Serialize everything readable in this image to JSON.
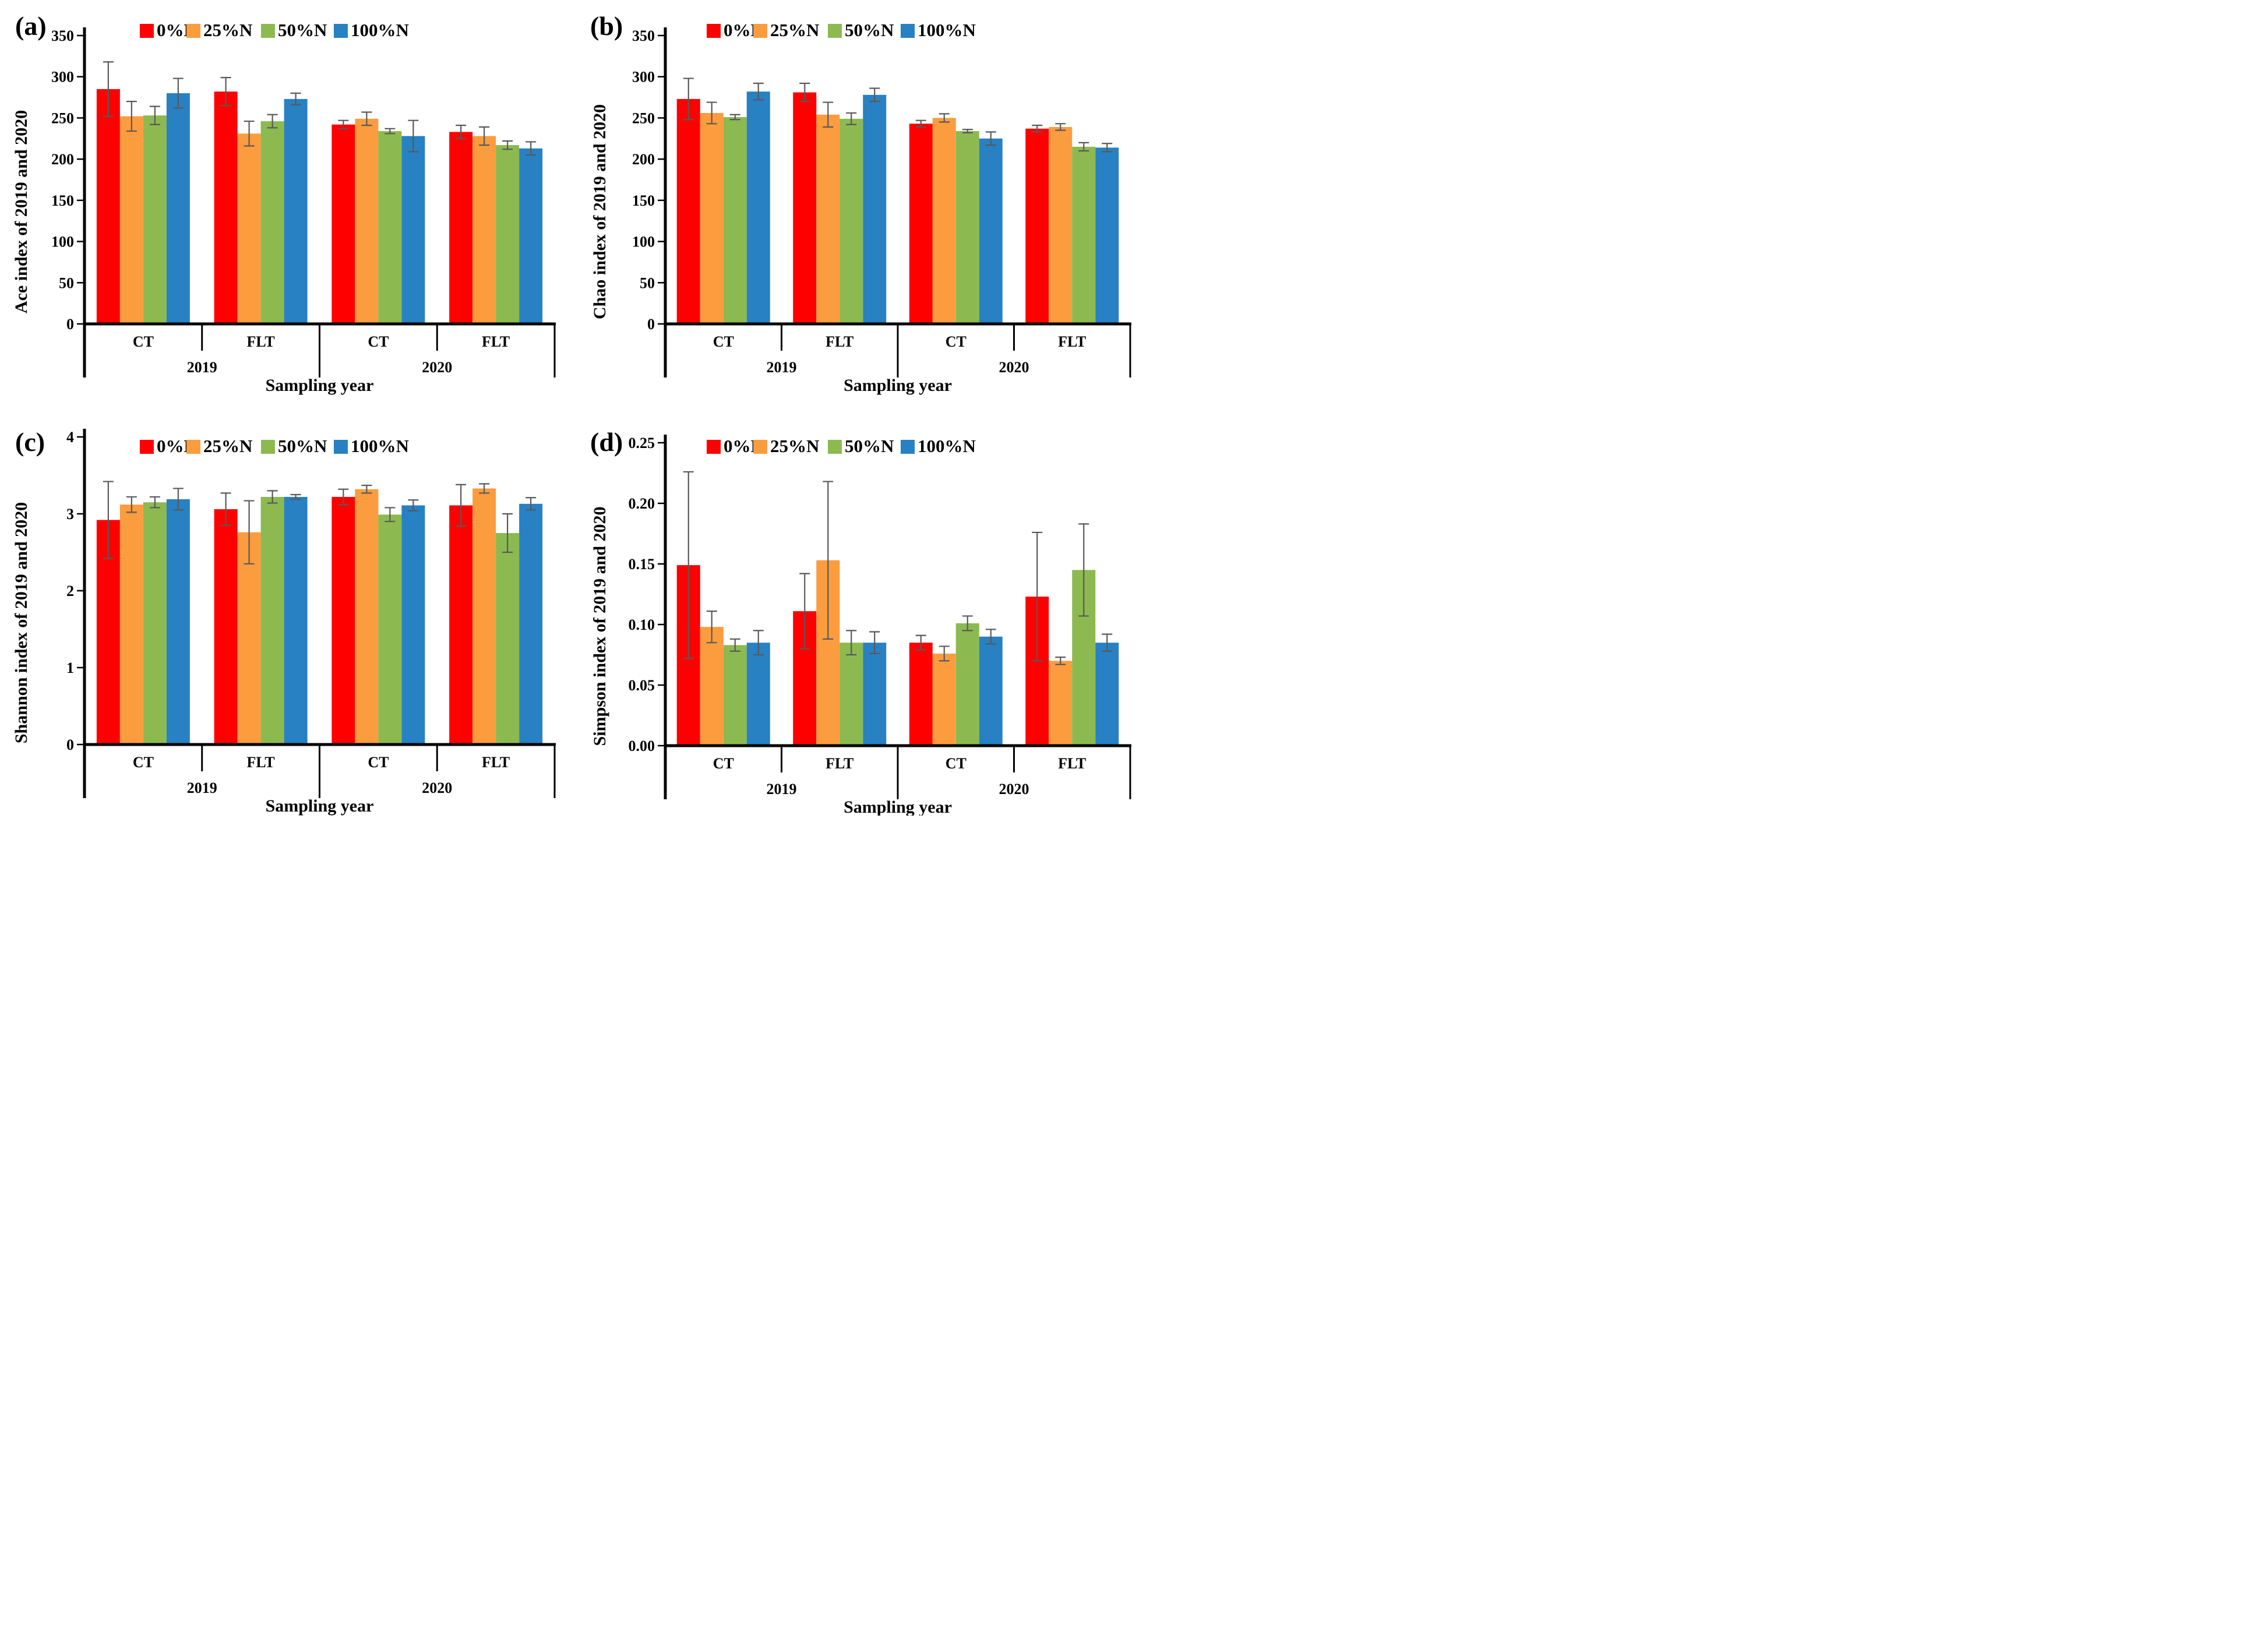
{
  "figure": {
    "xlabel": "Sampling year",
    "years": [
      "2019",
      "2020"
    ],
    "tillages": [
      "CT",
      "FLT"
    ],
    "legend": [
      "0%N",
      "25%N",
      "50%N",
      "100%N"
    ],
    "series_colors": [
      "#FF0000",
      "#FB9C3F",
      "#8CBA50",
      "#2781C3"
    ],
    "error_bar_color": "#595959",
    "axis_color": "#000000",
    "background": "#FFFFFF"
  },
  "chart_data": [
    {
      "type": "bar",
      "panel_letter": "(a)",
      "ylabel": "Ace index of 2019 and 2020",
      "xlabel": "Sampling year",
      "ylim": [
        0,
        350
      ],
      "yticks": [
        0,
        50,
        100,
        150,
        200,
        250,
        300,
        350
      ],
      "ytick_labels": [
        "0",
        "50",
        "100",
        "150",
        "200",
        "250",
        "300",
        "350"
      ],
      "grid": false,
      "legend_position": "top",
      "categories": [
        {
          "tillage": "CT",
          "year": "2019"
        },
        {
          "tillage": "FLT",
          "year": "2019"
        },
        {
          "tillage": "CT",
          "year": "2020"
        },
        {
          "tillage": "FLT",
          "year": "2020"
        }
      ],
      "series": [
        {
          "name": "0%N",
          "color": "#FF0000",
          "values": [
            285,
            282,
            242,
            233
          ],
          "errors": [
            33,
            17,
            5,
            8
          ]
        },
        {
          "name": "25%N",
          "color": "#FB9C3F",
          "values": [
            252,
            231,
            249,
            228
          ],
          "errors": [
            18,
            15,
            8,
            11
          ]
        },
        {
          "name": "50%N",
          "color": "#8CBA50",
          "values": [
            253,
            246,
            234,
            217
          ],
          "errors": [
            11,
            8,
            3,
            5
          ]
        },
        {
          "name": "100%N",
          "color": "#2781C3",
          "values": [
            280,
            273,
            228,
            213
          ],
          "errors": [
            18,
            7,
            19,
            8
          ]
        }
      ]
    },
    {
      "type": "bar",
      "panel_letter": "(b)",
      "ylabel": "Chao index of 2019 and 2020",
      "xlabel": "Sampling year",
      "ylim": [
        0,
        350
      ],
      "yticks": [
        0,
        50,
        100,
        150,
        200,
        250,
        300,
        350
      ],
      "ytick_labels": [
        "0",
        "50",
        "100",
        "150",
        "200",
        "250",
        "300",
        "350"
      ],
      "grid": false,
      "legend_position": "top",
      "categories": [
        {
          "tillage": "CT",
          "year": "2019"
        },
        {
          "tillage": "FLT",
          "year": "2019"
        },
        {
          "tillage": "CT",
          "year": "2020"
        },
        {
          "tillage": "FLT",
          "year": "2020"
        }
      ],
      "series": [
        {
          "name": "0%N",
          "color": "#FF0000",
          "values": [
            273,
            281,
            243,
            237
          ],
          "errors": [
            25,
            11,
            4,
            4
          ]
        },
        {
          "name": "25%N",
          "color": "#FB9C3F",
          "values": [
            256,
            254,
            250,
            239
          ],
          "errors": [
            13,
            15,
            5,
            4
          ]
        },
        {
          "name": "50%N",
          "color": "#8CBA50",
          "values": [
            251,
            249,
            234,
            215
          ],
          "errors": [
            3,
            7,
            2,
            5
          ]
        },
        {
          "name": "100%N",
          "color": "#2781C3",
          "values": [
            282,
            278,
            225,
            214
          ],
          "errors": [
            10,
            8,
            8,
            5
          ]
        }
      ]
    },
    {
      "type": "bar",
      "panel_letter": "(c)",
      "ylabel": "Shannon index of 2019 and 2020",
      "xlabel": "Sampling year",
      "ylim": [
        0,
        4
      ],
      "yticks": [
        0,
        1,
        2,
        3,
        4
      ],
      "ytick_labels": [
        "0",
        "1",
        "2",
        "3",
        "4"
      ],
      "grid": false,
      "legend_position": "top",
      "categories": [
        {
          "tillage": "CT",
          "year": "2019"
        },
        {
          "tillage": "FLT",
          "year": "2019"
        },
        {
          "tillage": "CT",
          "year": "2020"
        },
        {
          "tillage": "FLT",
          "year": "2020"
        }
      ],
      "series": [
        {
          "name": "0%N",
          "color": "#FF0000",
          "values": [
            2.92,
            3.06,
            3.22,
            3.11
          ],
          "errors": [
            0.5,
            0.21,
            0.1,
            0.27
          ]
        },
        {
          "name": "25%N",
          "color": "#FB9C3F",
          "values": [
            3.12,
            2.76,
            3.32,
            3.33
          ],
          "errors": [
            0.1,
            0.41,
            0.05,
            0.06
          ]
        },
        {
          "name": "50%N",
          "color": "#8CBA50",
          "values": [
            3.15,
            3.22,
            2.99,
            2.75
          ],
          "errors": [
            0.07,
            0.08,
            0.09,
            0.25
          ]
        },
        {
          "name": "100%N",
          "color": "#2781C3",
          "values": [
            3.19,
            3.22,
            3.11,
            3.13
          ],
          "errors": [
            0.14,
            0.03,
            0.07,
            0.08
          ]
        }
      ]
    },
    {
      "type": "bar",
      "panel_letter": "(d)",
      "ylabel": "Simpson index of 2019 and 2020",
      "xlabel": "Sampling year",
      "ylim": [
        0,
        0.25
      ],
      "yticks": [
        0,
        0.05,
        0.1,
        0.15,
        0.2,
        0.25
      ],
      "ytick_labels": [
        "0.00",
        "0.05",
        "0.10",
        "0.15",
        "0.20",
        "0.25"
      ],
      "grid": false,
      "legend_position": "top",
      "categories": [
        {
          "tillage": "CT",
          "year": "2019"
        },
        {
          "tillage": "FLT",
          "year": "2019"
        },
        {
          "tillage": "CT",
          "year": "2020"
        },
        {
          "tillage": "FLT",
          "year": "2020"
        }
      ],
      "series": [
        {
          "name": "0%N",
          "color": "#FF0000",
          "values": [
            0.149,
            0.111,
            0.085,
            0.123
          ],
          "errors": [
            0.077,
            0.031,
            0.006,
            0.053
          ]
        },
        {
          "name": "25%N",
          "color": "#FB9C3F",
          "values": [
            0.098,
            0.153,
            0.076,
            0.07
          ],
          "errors": [
            0.013,
            0.065,
            0.006,
            0.003
          ]
        },
        {
          "name": "50%N",
          "color": "#8CBA50",
          "values": [
            0.083,
            0.085,
            0.101,
            0.145
          ],
          "errors": [
            0.005,
            0.01,
            0.006,
            0.038
          ]
        },
        {
          "name": "100%N",
          "color": "#2781C3",
          "values": [
            0.085,
            0.085,
            0.09,
            0.085
          ],
          "errors": [
            0.01,
            0.009,
            0.006,
            0.007
          ]
        }
      ]
    }
  ]
}
